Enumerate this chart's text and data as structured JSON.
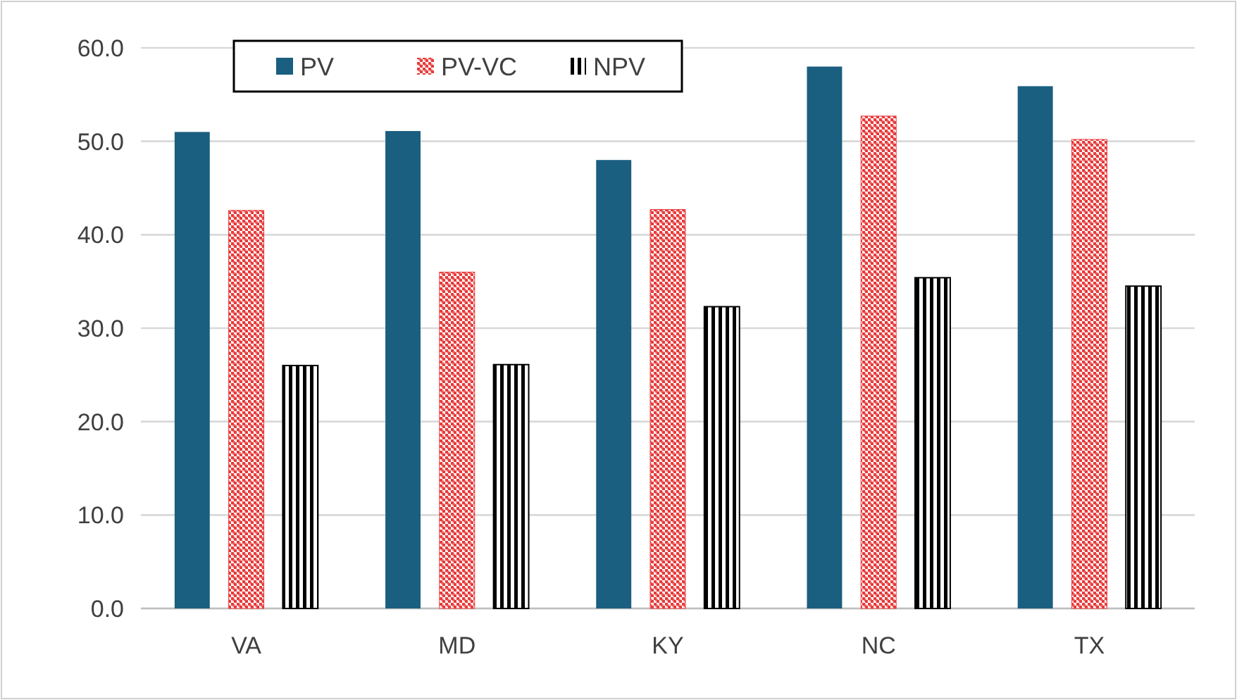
{
  "chart_data": {
    "type": "bar",
    "categories": [
      "VA",
      "MD",
      "KY",
      "NC",
      "TX"
    ],
    "series": [
      {
        "name": "PV",
        "color": "#1a5e80",
        "values": [
          51.0,
          51.1,
          48.0,
          58.0,
          55.9
        ]
      },
      {
        "name": "PV-VC",
        "color": "#e83a3a",
        "values": [
          42.6,
          36.0,
          42.7,
          52.7,
          50.2
        ]
      },
      {
        "name": "NPV",
        "color": "#000000",
        "values": [
          26.0,
          26.1,
          32.3,
          35.4,
          34.5
        ]
      }
    ],
    "ylim": [
      0,
      60
    ],
    "yticks": [
      {
        "value": 0,
        "label": "0.0"
      },
      {
        "value": 10,
        "label": "10.0"
      },
      {
        "value": 20,
        "label": "20.0"
      },
      {
        "value": 30,
        "label": "30.0"
      },
      {
        "value": 40,
        "label": "40.0"
      },
      {
        "value": 50,
        "label": "50.0"
      },
      {
        "value": 60,
        "label": "60.0"
      }
    ],
    "grid": "y",
    "legend": "top left"
  }
}
